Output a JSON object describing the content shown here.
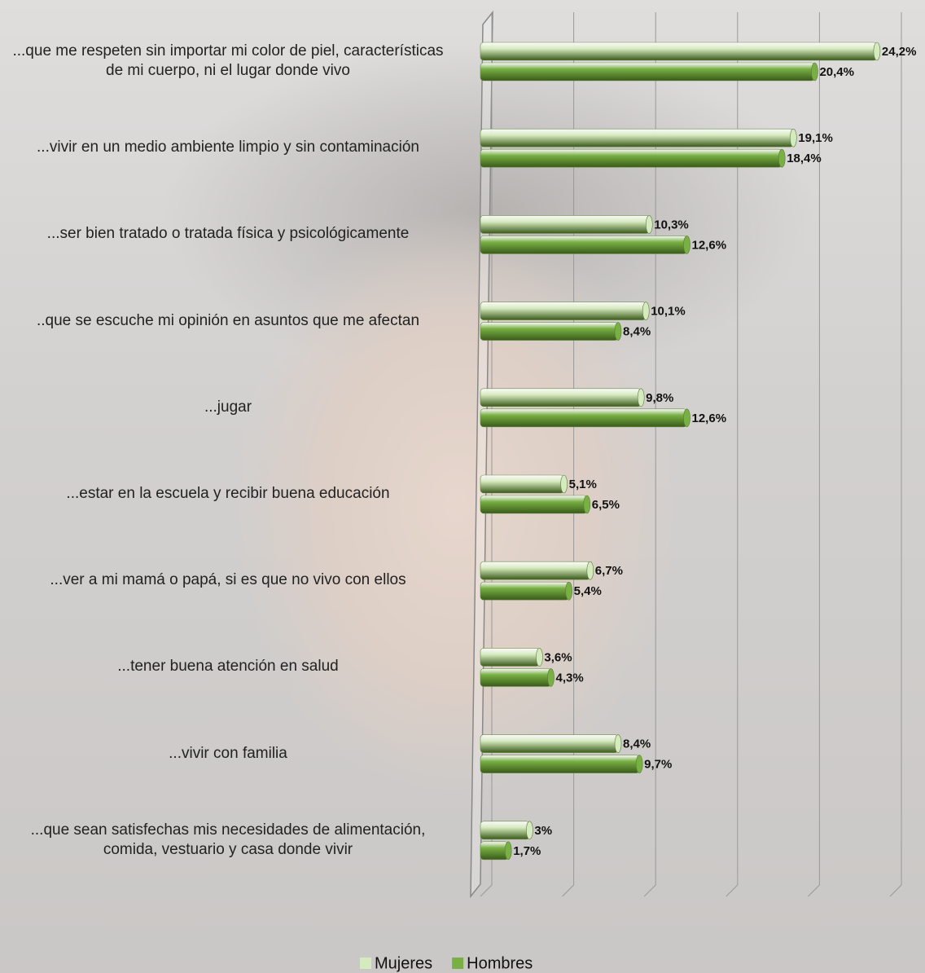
{
  "chart_data": {
    "type": "hbar",
    "categories": [
      "...que me respeten sin importar mi color de piel, características de mi cuerpo, ni el lugar donde vivo",
      "...vivir en un medio ambiente limpio y sin contaminación",
      "...ser bien tratado o tratada física y psicológicamente",
      "..que se escuche mi opinión en asuntos que me afectan",
      "...jugar",
      "...estar en la escuela y recibir buena educación",
      "...ver a mi mamá o papá, si es que no vivo con ellos",
      "...tener buena atención en salud",
      "...vivir con familia",
      "...que sean satisfechas mis necesidades de alimentación, comida, vestuario y casa donde vivir"
    ],
    "series": [
      {
        "name": "Mujeres",
        "color": "#d6eabf",
        "values": [
          24.2,
          19.1,
          10.3,
          10.1,
          9.8,
          5.1,
          6.7,
          3.6,
          8.4,
          3
        ],
        "value_labels": [
          "24,2%",
          "19,1%",
          "10,3%",
          "10,1%",
          "9,8%",
          "5,1%",
          "6,7%",
          "3,6%",
          "8,4%",
          "3%"
        ]
      },
      {
        "name": "Hombres",
        "color": "#78b043",
        "values": [
          20.4,
          18.4,
          12.6,
          8.4,
          12.6,
          6.5,
          5.4,
          4.3,
          9.7,
          1.7
        ],
        "value_labels": [
          "20,4%",
          "18,4%",
          "12,6%",
          "8,4%",
          "12,6%",
          "6,5%",
          "5,4%",
          "4,3%",
          "9,7%",
          "1,7%"
        ]
      }
    ],
    "xlim": [
      0,
      25
    ],
    "xticks": [
      0,
      5,
      10,
      15,
      20,
      25
    ],
    "grid": true,
    "legend": "bottom"
  }
}
